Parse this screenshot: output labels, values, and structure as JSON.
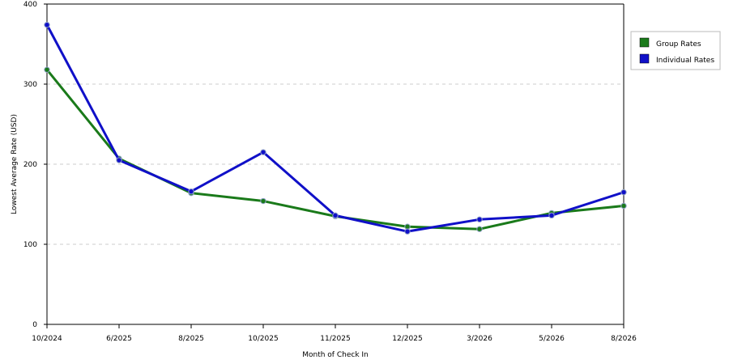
{
  "chart_data": {
    "type": "line",
    "xlabel": "Month of Check In",
    "ylabel": "Lowest Average Rate (USD)",
    "categories": [
      "10/2024",
      "6/2025",
      "8/2025",
      "10/2025",
      "11/2025",
      "12/2025",
      "3/2026",
      "5/2026",
      "8/2026"
    ],
    "ylim": [
      0,
      400
    ],
    "yticks": [
      0,
      100,
      200,
      300,
      400
    ],
    "grid": "horizontal dashed",
    "legend_position": "right",
    "series": [
      {
        "name": "Group Rates",
        "color": "#1a7a1a",
        "values": [
          318,
          207,
          164,
          154,
          135,
          122,
          119,
          139,
          148
        ]
      },
      {
        "name": "Individual Rates",
        "color": "#1010c8",
        "values": [
          374,
          205,
          166,
          215,
          136,
          116,
          131,
          136,
          165
        ]
      }
    ]
  }
}
